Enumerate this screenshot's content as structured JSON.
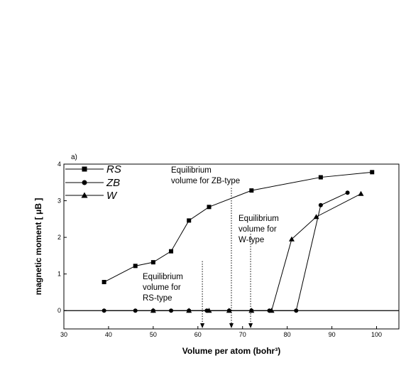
{
  "chart_data": {
    "type": "line",
    "panel_label": "a)",
    "title": "",
    "xlabel": "Volume per atom (bohr³)",
    "ylabel": "magnetic moment [ μB ]",
    "xlim": [
      30,
      105
    ],
    "ylim": [
      -0.5,
      4
    ],
    "xticks": [
      30,
      40,
      50,
      60,
      70,
      80,
      90,
      100
    ],
    "yticks": [
      0,
      1,
      2,
      3,
      4
    ],
    "grid": false,
    "legend_position": "top-left",
    "series": [
      {
        "name": "RS",
        "marker": "square",
        "x": [
          39.0,
          46.0,
          50.0,
          54.0,
          58.0,
          62.5,
          72.0,
          87.5,
          99.0
        ],
        "y": [
          0.78,
          1.22,
          1.32,
          1.62,
          2.46,
          2.83,
          3.28,
          3.64,
          3.78
        ]
      },
      {
        "name": "ZB",
        "marker": "circle",
        "x": [
          39.0,
          46.0,
          50.0,
          54.0,
          58.0,
          62.0,
          67.0,
          72.0,
          76.0,
          82.0,
          87.5,
          93.5
        ],
        "y": [
          0,
          0,
          0,
          0,
          0,
          0,
          0,
          0,
          0,
          0,
          2.88,
          3.22
        ]
      },
      {
        "name": "W",
        "marker": "triangle",
        "x": [
          50.0,
          58.0,
          62.5,
          67.0,
          72.0,
          76.5,
          81.0,
          86.5,
          96.5
        ],
        "y": [
          0,
          0,
          0,
          0,
          0,
          0,
          1.95,
          2.56,
          3.19
        ]
      }
    ],
    "annotations": [
      {
        "lines": [
          "Equilibrium",
          "volume for ZB-type"
        ],
        "x": 67.5
      },
      {
        "lines": [
          "Equilibrium",
          "volume for",
          "W-type"
        ],
        "x": 71.8
      },
      {
        "lines": [
          "Equilibrium",
          "volume for",
          "RS-type"
        ],
        "x": 61.0
      }
    ]
  }
}
